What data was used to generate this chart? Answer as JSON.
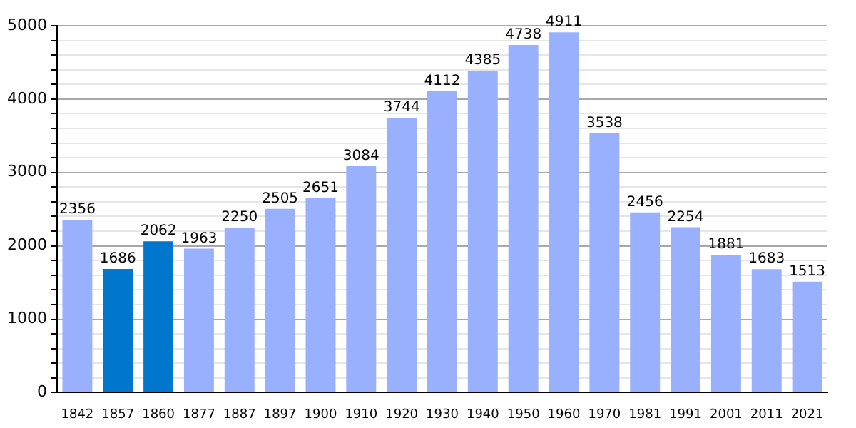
{
  "chart_data": {
    "type": "bar",
    "categories": [
      "1842",
      "1857",
      "1860",
      "1877",
      "1887",
      "1897",
      "1900",
      "1910",
      "1920",
      "1930",
      "1940",
      "1950",
      "1960",
      "1970",
      "1981",
      "1991",
      "2001",
      "2011",
      "2021"
    ],
    "values": [
      2356,
      1686,
      2062,
      1963,
      2250,
      2505,
      2651,
      3084,
      3744,
      4112,
      4385,
      4738,
      4911,
      3538,
      2456,
      2254,
      1881,
      1683,
      1513
    ],
    "colors": [
      "#99b0ff",
      "#0077cc",
      "#0077cc",
      "#99b0ff",
      "#99b0ff",
      "#99b0ff",
      "#99b0ff",
      "#99b0ff",
      "#99b0ff",
      "#99b0ff",
      "#99b0ff",
      "#99b0ff",
      "#99b0ff",
      "#99b0ff",
      "#99b0ff",
      "#99b0ff",
      "#99b0ff",
      "#99b0ff",
      "#99b0ff"
    ],
    "ylim": [
      0,
      5000
    ],
    "yticks": [
      0,
      {
        "value": 200,
        "label": null
      },
      {
        "value": 400,
        "label": null
      },
      {
        "value": 600,
        "label": null
      },
      {
        "value": 800,
        "label": null
      },
      1000,
      {
        "value": 1200,
        "label": null
      },
      {
        "value": 1400,
        "label": null
      },
      {
        "value": 1600,
        "label": null
      },
      {
        "value": 1800,
        "label": null
      },
      2000,
      {
        "value": 2200,
        "label": null
      },
      {
        "value": 2400,
        "label": null
      },
      {
        "value": 2600,
        "label": null
      },
      {
        "value": 2800,
        "label": null
      },
      3000,
      {
        "value": 3200,
        "label": null
      },
      {
        "value": 3400,
        "label": null
      },
      {
        "value": 3600,
        "label": null
      },
      {
        "value": 3800,
        "label": null
      },
      4000,
      {
        "value": 4200,
        "label": null
      },
      {
        "value": 4400,
        "label": null
      },
      {
        "value": 4600,
        "label": null
      },
      {
        "value": 4800,
        "label": null
      },
      5000
    ],
    "grid": "y",
    "data_labels": true,
    "legend": false
  }
}
